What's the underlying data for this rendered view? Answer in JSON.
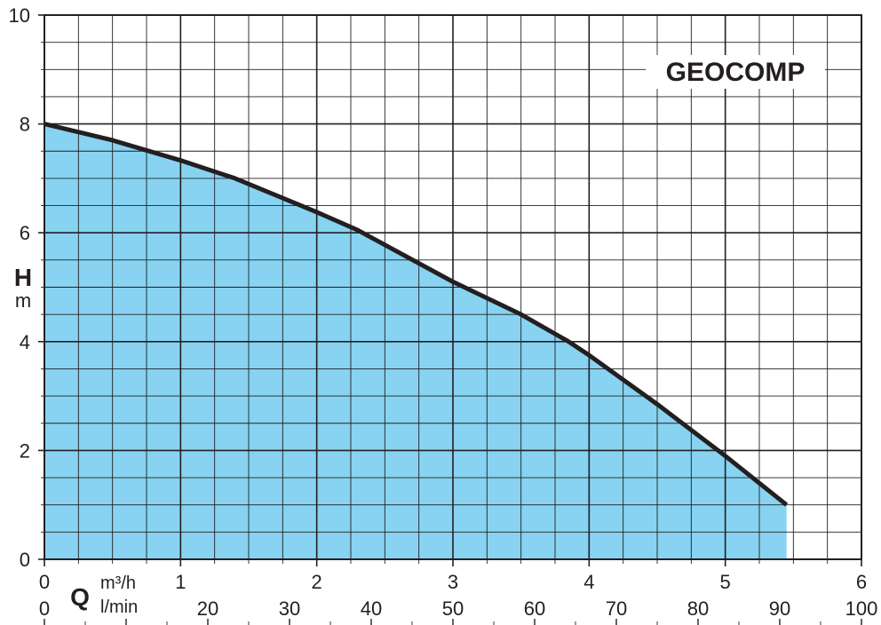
{
  "chart_data": {
    "type": "area",
    "title": "GEOCOMP",
    "ylabel_symbol": "H",
    "ylabel_unit": "m",
    "xlabel_symbol": "Q",
    "x_units": [
      "m³/h",
      "l/min"
    ],
    "xlim": [
      0,
      6
    ],
    "ylim": [
      0,
      10
    ],
    "grid": true,
    "y_ticks": [
      "0",
      "2",
      "4",
      "6",
      "8",
      "10"
    ],
    "x_ticks_m3h": [
      "0",
      "1",
      "2",
      "3",
      "4",
      "5",
      "6"
    ],
    "x_ticks_lmin": [
      "0",
      "20",
      "30",
      "40",
      "50",
      "60",
      "70",
      "80",
      "90",
      "100"
    ],
    "series": [
      {
        "x": [
          0,
          0.5,
          1.0,
          1.4,
          2.0,
          2.3,
          3.0,
          3.5,
          3.85,
          4.0,
          4.5,
          5.0,
          5.45
        ],
        "y": [
          8.0,
          7.7,
          7.33,
          7.0,
          6.38,
          6.05,
          5.1,
          4.5,
          4.0,
          3.75,
          2.85,
          1.9,
          1.0
        ]
      }
    ],
    "colors": {
      "fill": "#87d3f1",
      "line": "#231f20",
      "grid": "#231f20"
    }
  }
}
